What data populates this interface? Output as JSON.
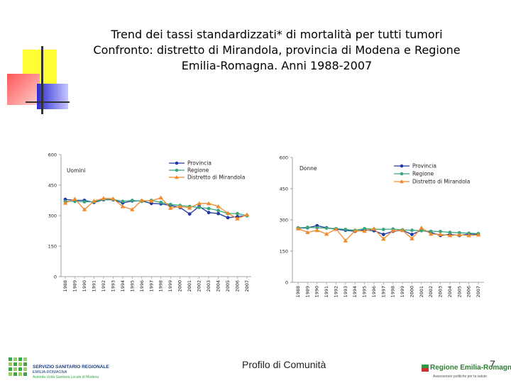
{
  "title": {
    "line1": "Trend dei tassi standardizzati* di mortalità per tutti tumori",
    "line2": "Confronto: distretto di Mirandola, provincia di Modena e Regione",
    "line3": "Emilia-Romagna. Anni 1988-2007"
  },
  "footer": {
    "center": "Profilo di Comunità",
    "page_number": "7"
  },
  "logos": {
    "left": {
      "line1": "SERVIZIO SANITARIO REGIONALE",
      "line2": "EMILIA-ROMAGNA",
      "line3": "Azienda Unità Sanitaria Locale di Modena"
    },
    "right": {
      "name": "Regione Emilia-Romagna",
      "tagline": "Assessorato politiche per la salute"
    }
  },
  "colors": {
    "provincia": "#1f3aa6",
    "regione": "#3aa57a",
    "distretto": "#f08a2a",
    "deco_yellow": "#ffff33",
    "deco_red": "#ff6666",
    "deco_blue": "#3333cc"
  },
  "chart_data": [
    {
      "type": "line",
      "unit_label": "Uomini",
      "ylim": [
        0,
        600
      ],
      "yticks": [
        0,
        150,
        300,
        450,
        600
      ],
      "x": [
        "1988",
        "1989",
        "1990",
        "1991",
        "1992",
        "1993",
        "1994",
        "1995",
        "1996",
        "1997",
        "1998",
        "1999",
        "2000",
        "2001",
        "2002",
        "2003",
        "2004",
        "2005",
        "2006",
        "2007"
      ],
      "series": [
        {
          "name": "Provincia",
          "color": "#1f3aa6",
          "marker": "circle",
          "values": [
            380,
            375,
            375,
            365,
            378,
            378,
            362,
            372,
            372,
            360,
            358,
            350,
            340,
            308,
            345,
            315,
            310,
            290,
            295,
            300
          ]
        },
        {
          "name": "Regione",
          "color": "#3aa57a",
          "marker": "circle",
          "values": [
            370,
            370,
            368,
            368,
            380,
            380,
            370,
            375,
            370,
            375,
            365,
            355,
            350,
            345,
            340,
            335,
            325,
            310,
            310,
            300
          ]
        },
        {
          "name": "Distretto di Mirandola",
          "color": "#f08a2a",
          "marker": "triangle",
          "values": [
            362,
            382,
            330,
            372,
            385,
            383,
            345,
            330,
            375,
            372,
            388,
            337,
            345,
            338,
            360,
            360,
            345,
            312,
            285,
            305
          ]
        }
      ]
    },
    {
      "type": "line",
      "unit_label": "Donne",
      "ylim": [
        0,
        600
      ],
      "yticks": [
        0,
        150,
        300,
        450,
        600
      ],
      "x": [
        "1988",
        "1989",
        "1990",
        "1991",
        "1992",
        "1993",
        "1994",
        "1995",
        "1996",
        "1997",
        "1998",
        "1999",
        "2000",
        "2001",
        "2002",
        "2003",
        "2004",
        "2005",
        "2006",
        "2007"
      ],
      "series": [
        {
          "name": "Provincia",
          "color": "#1f3aa6",
          "marker": "circle",
          "values": [
            260,
            262,
            272,
            262,
            255,
            250,
            245,
            252,
            248,
            230,
            245,
            250,
            230,
            250,
            240,
            225,
            230,
            225,
            232,
            230
          ]
        },
        {
          "name": "Regione",
          "color": "#3aa57a",
          "marker": "circle",
          "values": [
            262,
            264,
            262,
            260,
            258,
            254,
            250,
            258,
            255,
            254,
            256,
            252,
            250,
            248,
            245,
            244,
            240,
            238,
            236,
            234
          ]
        },
        {
          "name": "Distretto di Mirandola",
          "color": "#f08a2a",
          "marker": "triangle",
          "values": [
            258,
            240,
            250,
            232,
            256,
            200,
            248,
            246,
            258,
            208,
            248,
            250,
            210,
            262,
            232,
            230,
            225,
            228,
            225,
            228
          ]
        }
      ]
    }
  ]
}
